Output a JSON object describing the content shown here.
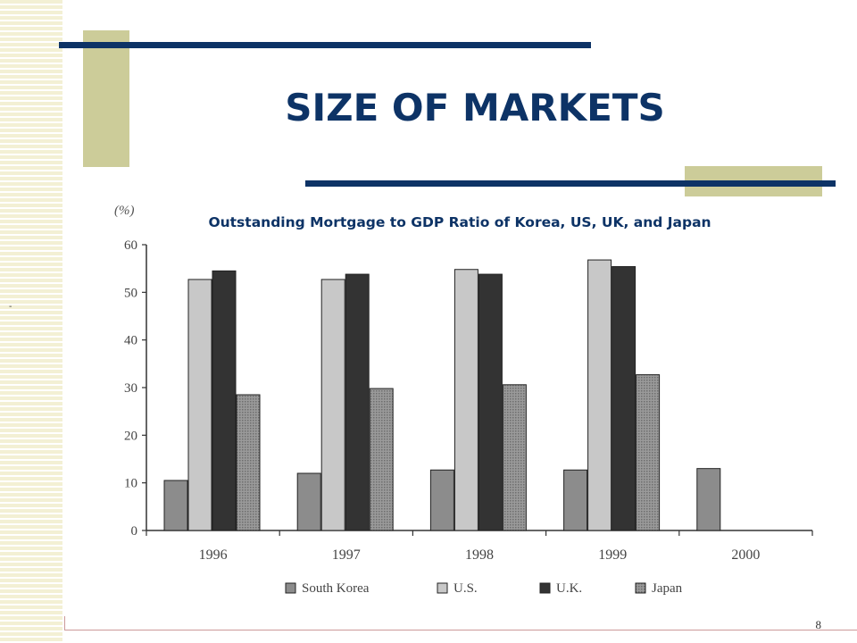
{
  "slide": {
    "title": "SIZE OF MARKETS",
    "page_number": "8",
    "stray_mark": "-"
  },
  "colors": {
    "navy": "#0d3366",
    "olive": "#cccc99",
    "south_korea": "#8c8c8c",
    "us": "#c8c8c8",
    "uk": "#333333",
    "japan": "#8a8a8a"
  },
  "chart_data": {
    "type": "bar",
    "title": "Outstanding Mortgage to GDP Ratio of Korea, US, UK, and Japan",
    "ylabel": "(%)",
    "xlabel": "",
    "ylim": [
      0,
      60
    ],
    "yticks": [
      0,
      10,
      20,
      30,
      40,
      50,
      60
    ],
    "categories": [
      "1996",
      "1997",
      "1998",
      "1999",
      "2000"
    ],
    "legend_position": "bottom",
    "grid": false,
    "series": [
      {
        "name": "South Korea",
        "color": "#8c8c8c",
        "pattern": "solid",
        "values": [
          10.5,
          12,
          12.7,
          12.7,
          13
        ]
      },
      {
        "name": "U.S.",
        "color": "#c8c8c8",
        "pattern": "solid",
        "values": [
          52.7,
          52.7,
          54.8,
          56.8,
          null
        ]
      },
      {
        "name": "U.K.",
        "color": "#333333",
        "pattern": "solid",
        "values": [
          54.5,
          53.8,
          53.8,
          55.4,
          null
        ]
      },
      {
        "name": "Japan",
        "color": "#8a8a8a",
        "pattern": "dots",
        "values": [
          28.5,
          29.8,
          30.6,
          32.7,
          null
        ]
      }
    ]
  }
}
